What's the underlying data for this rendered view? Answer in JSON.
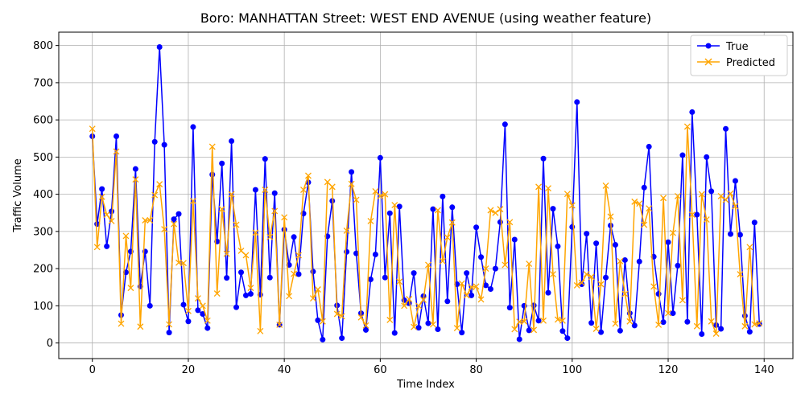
{
  "chart_data": {
    "type": "line",
    "title": "Boro: MANHATTAN Street: WEST END AVENUE (using weather feature)",
    "xlabel": "Time Index",
    "ylabel": "Traffic Volume",
    "xlim": [
      -7,
      146
    ],
    "ylim": [
      -42,
      836
    ],
    "xticks": [
      0,
      20,
      40,
      60,
      80,
      100,
      120,
      140
    ],
    "yticks": [
      0,
      100,
      200,
      300,
      400,
      500,
      600,
      700,
      800
    ],
    "grid": true,
    "legend_position": "top-right",
    "series": [
      {
        "name": "True",
        "color": "#0000ff",
        "marker": "circle",
        "values": [
          556,
          320,
          414,
          260,
          354,
          556,
          75,
          190,
          246,
          468,
          152,
          246,
          100,
          541,
          796,
          533,
          28,
          333,
          347,
          103,
          58,
          581,
          88,
          78,
          40,
          453,
          273,
          483,
          175,
          543,
          96,
          190,
          128,
          132,
          412,
          130,
          495,
          176,
          403,
          49,
          305,
          210,
          285,
          185,
          348,
          432,
          192,
          61,
          9,
          287,
          382,
          101,
          13,
          245,
          460,
          241,
          80,
          35,
          171,
          238,
          498,
          176,
          349,
          27,
          367,
          115,
          107,
          188,
          41,
          126,
          53,
          360,
          37,
          394,
          112,
          365,
          158,
          28,
          188,
          128,
          311,
          231,
          155,
          145,
          200,
          325,
          588,
          95,
          278,
          10,
          100,
          34,
          101,
          60,
          496,
          135,
          361,
          260,
          32,
          13,
          312,
          648,
          158,
          294,
          54,
          268,
          29,
          176,
          316,
          264,
          33,
          223,
          80,
          47,
          219,
          418,
          528,
          232,
          132,
          56,
          271,
          80,
          208,
          505,
          57,
          621,
          345,
          24,
          500,
          408,
          48,
          38,
          576,
          293,
          436,
          291,
          73,
          30,
          324,
          51
        ]
      },
      {
        "name": "Predicted",
        "color": "#ffa500",
        "marker": "x",
        "values": [
          576,
          258,
          393,
          345,
          328,
          515,
          52,
          288,
          148,
          440,
          44,
          330,
          330,
          398,
          427,
          306,
          50,
          320,
          216,
          215,
          86,
          382,
          120,
          100,
          60,
          528,
          133,
          360,
          240,
          400,
          318,
          248,
          236,
          148,
          297,
          32,
          412,
          285,
          355,
          49,
          338,
          126,
          186,
          236,
          412,
          450,
          120,
          144,
          58,
          433,
          420,
          78,
          72,
          302,
          428,
          385,
          69,
          47,
          328,
          408,
          395,
          400,
          62,
          371,
          165,
          100,
          118,
          43,
          100,
          116,
          210,
          50,
          357,
          220,
          284,
          324,
          40,
          160,
          128,
          150,
          152,
          117,
          200,
          357,
          350,
          360,
          210,
          325,
          37,
          57,
          58,
          213,
          35,
          420,
          60,
          416,
          185,
          63,
          60,
          401,
          370,
          155,
          162,
          185,
          178,
          38,
          158,
          423,
          340,
          52,
          220,
          132,
          58,
          380,
          375,
          318,
          362,
          152,
          49,
          390,
          80,
          296,
          395,
          115,
          582,
          345,
          45,
          400,
          332,
          58,
          25,
          395,
          385,
          402,
          368,
          185,
          45,
          258,
          50,
          53
        ]
      }
    ]
  }
}
